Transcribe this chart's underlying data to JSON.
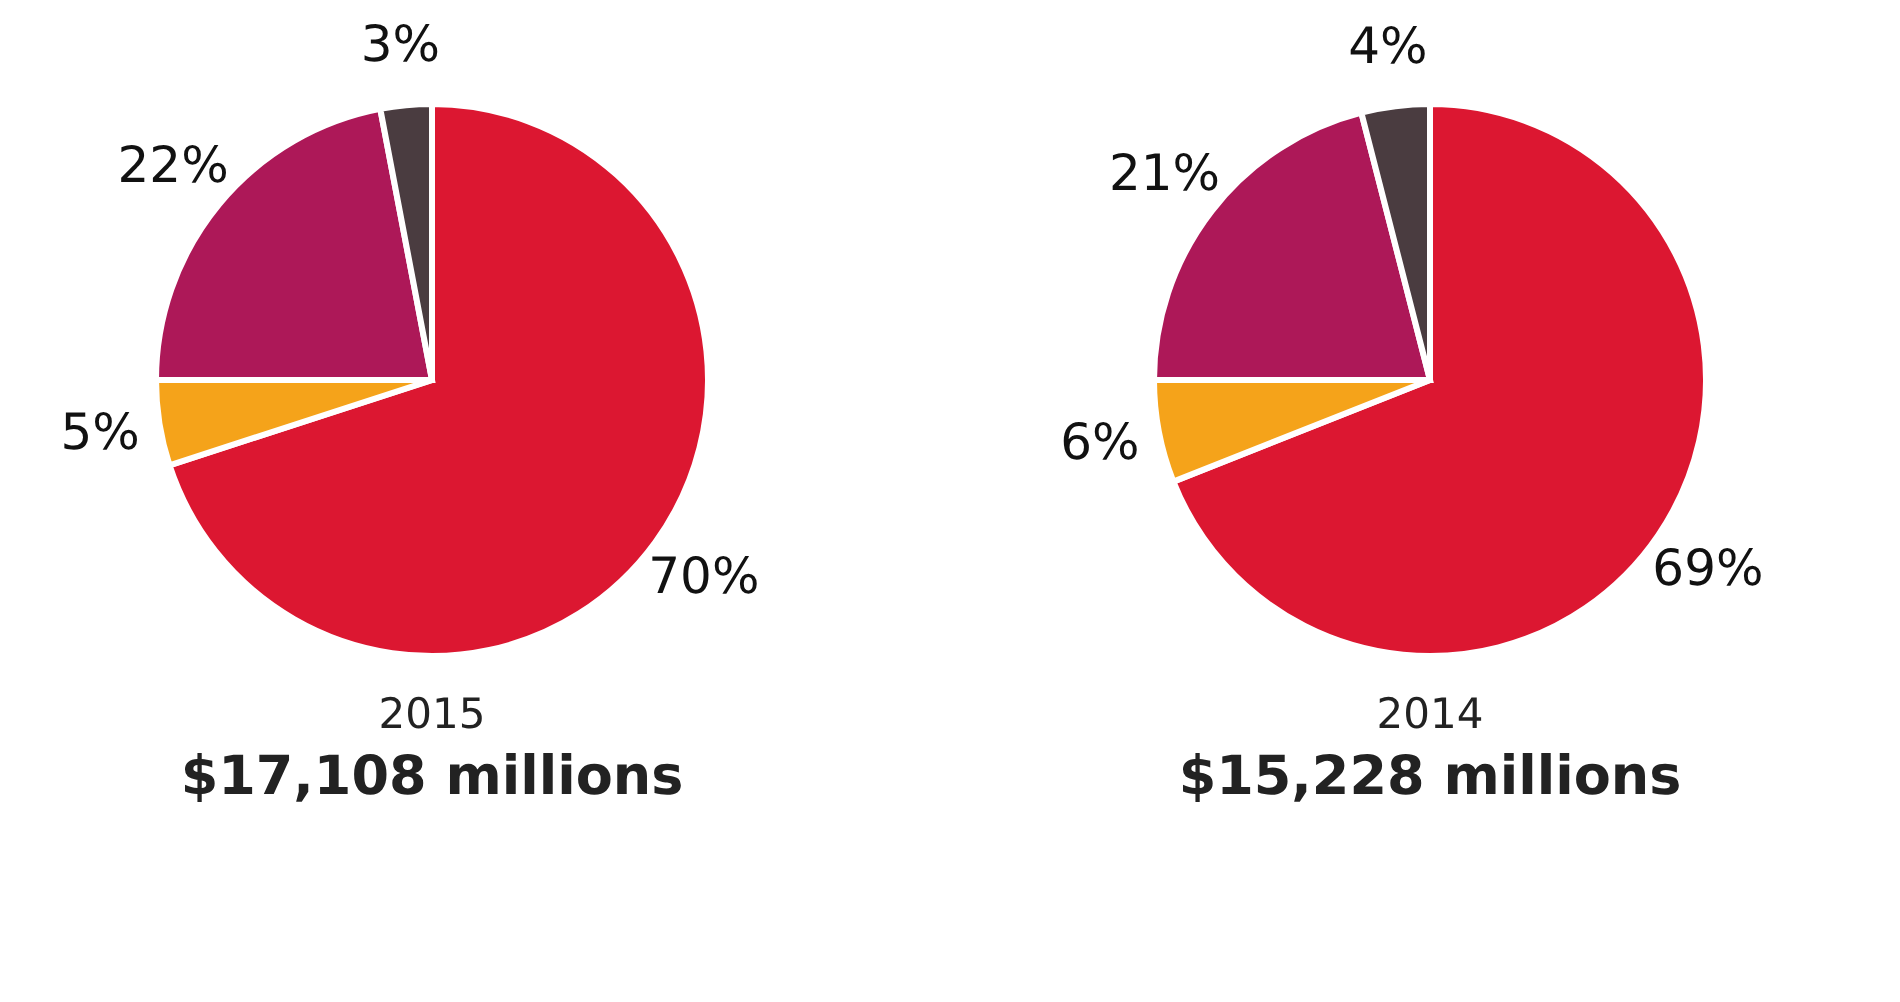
{
  "chart_data": [
    {
      "type": "pie",
      "title": "2015",
      "subtitle": "$17,108 millions",
      "categories": [
        null,
        null,
        null,
        null
      ],
      "values": [
        70,
        5,
        22,
        3
      ],
      "colors": [
        "#dc1731",
        "#f5a31a",
        "#ad1858",
        "#4a3c40"
      ],
      "value_labels": [
        "70%",
        "5%",
        "22%",
        "3%"
      ]
    },
    {
      "type": "pie",
      "title": "2014",
      "subtitle": "$15,228 millions",
      "categories": [
        null,
        null,
        null,
        null
      ],
      "values": [
        69,
        6,
        21,
        4
      ],
      "colors": [
        "#dc1731",
        "#f5a31a",
        "#ad1858",
        "#4a3c40"
      ],
      "value_labels": [
        "69%",
        "6%",
        "21%",
        "4%"
      ]
    }
  ]
}
